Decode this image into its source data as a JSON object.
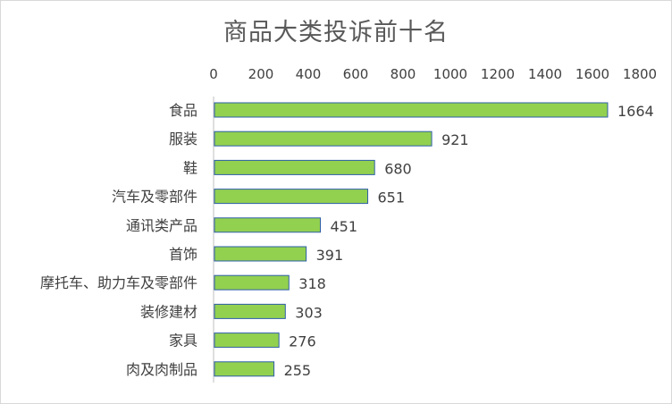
{
  "chart_data": {
    "type": "bar",
    "orientation": "horizontal",
    "title": "商品大类投诉前十名",
    "categories": [
      "食品",
      "服装",
      "鞋",
      "汽车及零部件",
      "通讯类产品",
      "首饰",
      "摩托车、助力车及零部件",
      "装修建材",
      "家具",
      "肉及肉制品"
    ],
    "values": [
      1664,
      921,
      680,
      651,
      451,
      391,
      318,
      303,
      276,
      255
    ],
    "xlim": [
      0,
      1800
    ],
    "xticks": [
      0,
      200,
      400,
      600,
      800,
      1000,
      1200,
      1400,
      1600,
      1800
    ],
    "axis_position": "top",
    "grid": false,
    "legend": "none",
    "data_labels": true,
    "colors": {
      "bar_fill": "#92d050",
      "bar_stroke": "#2e5fa8",
      "axis": "#bfbfbf"
    }
  }
}
